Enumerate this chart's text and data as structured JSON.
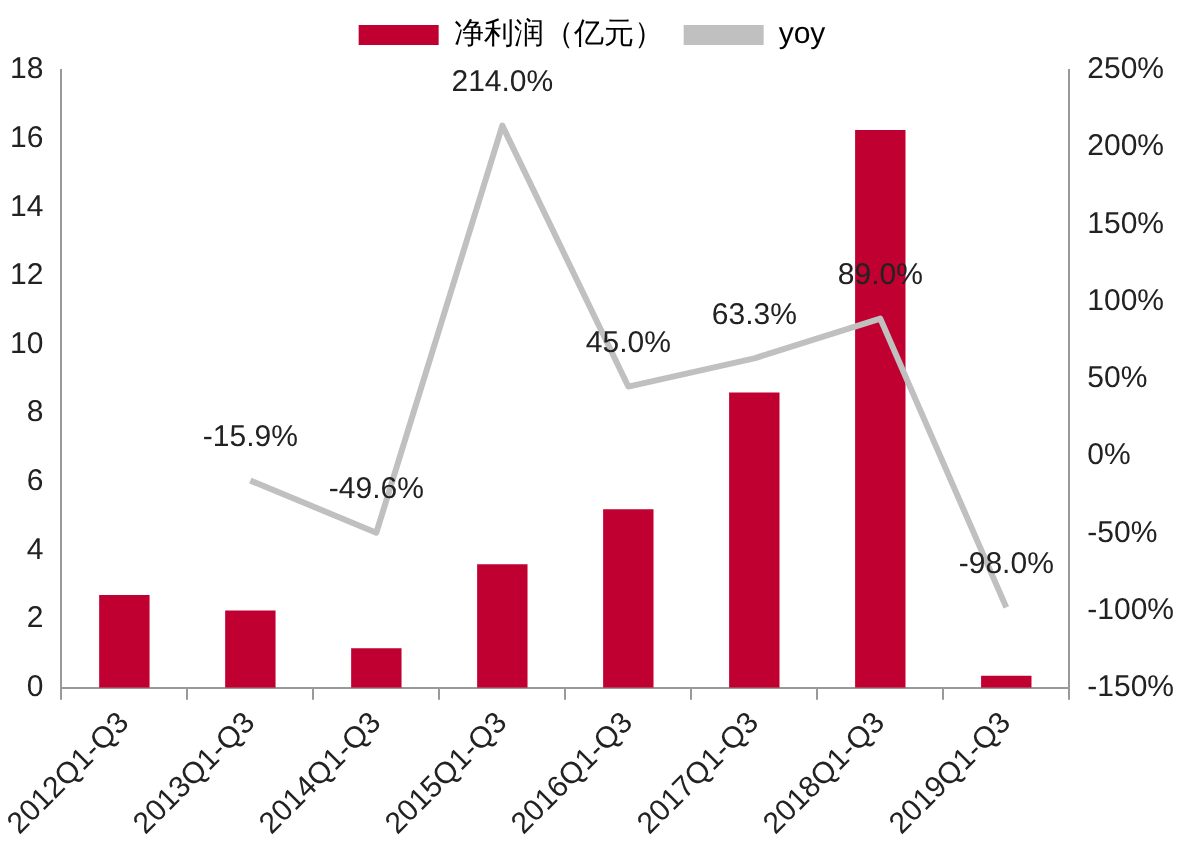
{
  "chart_data": {
    "type": "bar",
    "categories": [
      "2012Q1-Q3",
      "2013Q1-Q3",
      "2014Q1-Q3",
      "2015Q1-Q3",
      "2016Q1-Q3",
      "2017Q1-Q3",
      "2018Q1-Q3",
      "2019Q1-Q3"
    ],
    "series": [
      {
        "name": "净利润（亿元）",
        "color": "#c00030",
        "values": [
          2.7,
          2.25,
          1.15,
          3.6,
          5.2,
          8.6,
          16.25,
          0.35
        ]
      },
      {
        "name": "yoy",
        "type": "line",
        "axis": "y2",
        "color": "#c0c0c0",
        "values": [
          null,
          -15.9,
          -49.6,
          214.0,
          45.0,
          63.3,
          89.0,
          -98.0
        ],
        "value_labels": [
          null,
          "-15.9%",
          "-49.6%",
          "214.0%",
          "45.0%",
          "63.3%",
          "89.0%",
          "-98.0%"
        ]
      }
    ],
    "ylim": [
      0,
      18
    ],
    "yticks": [
      0,
      2,
      4,
      6,
      8,
      10,
      12,
      14,
      16,
      18
    ],
    "y2lim": [
      -150,
      250
    ],
    "y2ticks": [
      {
        "value": -150,
        "label": "-150%"
      },
      {
        "value": -100,
        "label": "-100%"
      },
      {
        "value": -50,
        "label": "-50%"
      },
      {
        "value": 0,
        "label": "0%"
      },
      {
        "value": 50,
        "label": "50%"
      },
      {
        "value": 100,
        "label": "100%"
      },
      {
        "value": 150,
        "label": "150%"
      },
      {
        "value": 200,
        "label": "200%"
      },
      {
        "value": 250,
        "label": "250%"
      }
    ],
    "grid": false,
    "legend": "top",
    "marker": "none"
  }
}
